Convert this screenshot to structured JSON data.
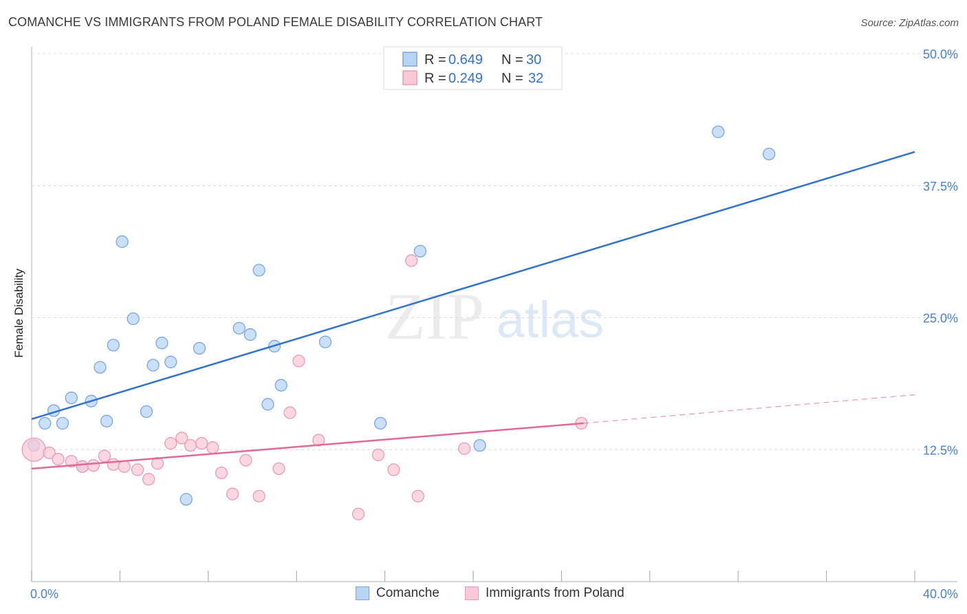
{
  "header": {
    "title": "COMANCHE VS IMMIGRANTS FROM POLAND FEMALE DISABILITY CORRELATION CHART",
    "source": "Source: ZipAtlas.com"
  },
  "colors": {
    "blue_fill": "#b8d4f5",
    "blue_stroke": "#7aa6e0",
    "blue_line": "#2f72d0",
    "pink_fill": "#f9c9d8",
    "pink_stroke": "#ec9ab6",
    "pink_line": "#e06a94",
    "tick_text": "#4a80cc",
    "grid": "#dcdcdc"
  },
  "watermark": {
    "zip": "ZIP",
    "atlas": "atlas"
  },
  "stats_legend": [
    {
      "r_label": "R = ",
      "r_value": "0.649",
      "n_label": "N = ",
      "n_value": "30"
    },
    {
      "r_label": "R = ",
      "r_value": "0.249",
      "n_label": "N = ",
      "n_value": "32"
    }
  ],
  "chart_data": {
    "type": "scatter",
    "xlabel": "",
    "ylabel": "Female Disability",
    "xlim": [
      0,
      40
    ],
    "ylim": [
      0,
      50
    ],
    "x_tick_labels": [
      "0.0%",
      "40.0%"
    ],
    "y_ticks": [
      12.5,
      25.0,
      37.5,
      50.0
    ],
    "y_tick_labels": [
      "12.5%",
      "25.0%",
      "37.5%",
      "50.0%"
    ],
    "grid": "horizontal dashed",
    "legend": "top-center and bottom",
    "series": [
      {
        "name": "Comanche",
        "color": "#b8d4f5",
        "points": [
          [
            0.1,
            12.9
          ],
          [
            0.6,
            15.0
          ],
          [
            1.0,
            16.2
          ],
          [
            1.4,
            15.0
          ],
          [
            1.8,
            17.4
          ],
          [
            2.3,
            10.9
          ],
          [
            2.7,
            17.1
          ],
          [
            3.1,
            20.3
          ],
          [
            3.4,
            15.2
          ],
          [
            3.7,
            22.4
          ],
          [
            4.1,
            32.2
          ],
          [
            4.6,
            24.9
          ],
          [
            5.2,
            16.1
          ],
          [
            5.5,
            20.5
          ],
          [
            5.9,
            22.6
          ],
          [
            6.3,
            20.8
          ],
          [
            7.0,
            7.8
          ],
          [
            7.6,
            22.1
          ],
          [
            9.4,
            24.0
          ],
          [
            9.9,
            23.4
          ],
          [
            10.3,
            29.5
          ],
          [
            10.7,
            16.8
          ],
          [
            11.0,
            22.3
          ],
          [
            11.3,
            18.6
          ],
          [
            13.3,
            22.7
          ],
          [
            15.8,
            15.0
          ],
          [
            17.6,
            31.3
          ],
          [
            20.3,
            12.9
          ],
          [
            31.1,
            42.6
          ],
          [
            33.4,
            40.5
          ]
        ],
        "trend": {
          "x": [
            0,
            40
          ],
          "y": [
            15.4,
            40.7
          ]
        }
      },
      {
        "name": "Immigrants from Poland",
        "color": "#f9c9d8",
        "points": [
          [
            0.1,
            12.5
          ],
          [
            0.8,
            12.2
          ],
          [
            1.2,
            11.6
          ],
          [
            1.8,
            11.4
          ],
          [
            2.3,
            10.9
          ],
          [
            2.8,
            11.0
          ],
          [
            3.3,
            11.9
          ],
          [
            3.7,
            11.1
          ],
          [
            4.2,
            10.9
          ],
          [
            4.8,
            10.6
          ],
          [
            5.3,
            9.7
          ],
          [
            5.7,
            11.2
          ],
          [
            6.3,
            13.1
          ],
          [
            6.8,
            13.6
          ],
          [
            7.2,
            12.9
          ],
          [
            7.7,
            13.1
          ],
          [
            8.2,
            12.7
          ],
          [
            8.6,
            10.3
          ],
          [
            9.1,
            8.3
          ],
          [
            9.7,
            11.5
          ],
          [
            10.3,
            8.1
          ],
          [
            11.2,
            10.7
          ],
          [
            11.7,
            16.0
          ],
          [
            12.1,
            20.9
          ],
          [
            13.0,
            13.4
          ],
          [
            14.8,
            6.4
          ],
          [
            15.7,
            12.0
          ],
          [
            16.4,
            10.6
          ],
          [
            17.2,
            30.4
          ],
          [
            17.5,
            8.1
          ],
          [
            19.6,
            12.6
          ],
          [
            24.9,
            15.0
          ]
        ],
        "trend": {
          "x": [
            0,
            25
          ],
          "y": [
            10.7,
            15.0
          ]
        },
        "trend_dashed": {
          "x": [
            25,
            40
          ],
          "y": [
            15.0,
            17.7
          ]
        }
      }
    ]
  },
  "bottom_legend": [
    {
      "label": "Comanche"
    },
    {
      "label": "Immigrants from Poland"
    }
  ]
}
